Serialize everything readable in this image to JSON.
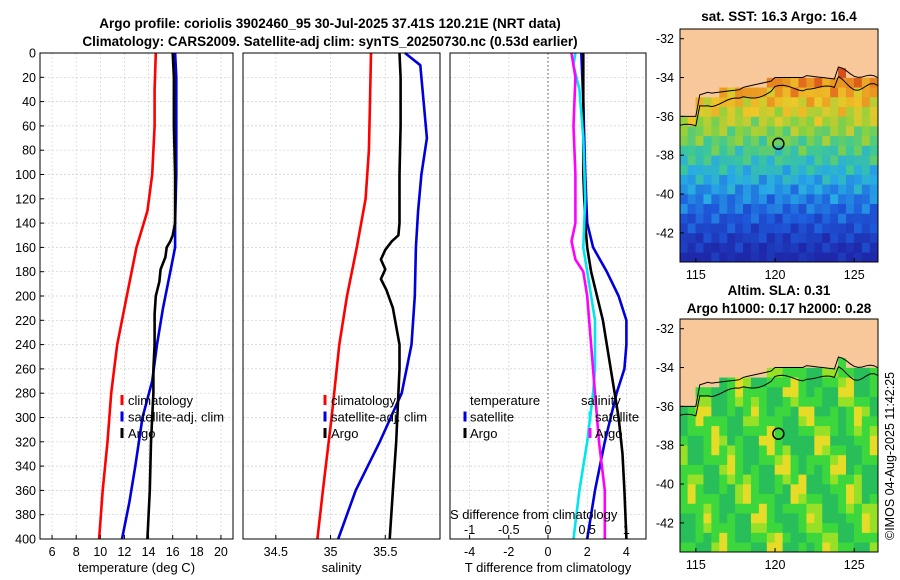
{
  "title_line1": "Argo profile: coriolis 3902460_95 30-Jul-2025 37.41S 120.21E (NRT data)",
  "title_line2": "Climatology: CARS2009. Satellite-adj clim: synTS_20250730.nc (0.53d earlier)",
  "watermark": "©IMOS 04-Aug-2025 11:42:25",
  "colors": {
    "climatology": "#ff0000",
    "satellite": "#0000dd",
    "argo": "#000000",
    "sdiff_clim": "#ff00ff",
    "sdiff_sat": "#00e5ee"
  },
  "chart_data": [
    {
      "type": "line",
      "name": "temperature",
      "xlabel": "temperature (deg C)",
      "ylabel": "",
      "xlim": [
        5,
        21
      ],
      "ylim": [
        400,
        0
      ],
      "xticks": [
        6,
        8,
        10,
        12,
        14,
        16,
        18,
        20
      ],
      "yticks": [
        0,
        20,
        40,
        60,
        80,
        100,
        120,
        140,
        160,
        180,
        200,
        220,
        240,
        260,
        280,
        300,
        320,
        340,
        360,
        380,
        400
      ],
      "legend": [
        "climatology",
        "satellite-adj. clim",
        "Argo"
      ],
      "series": [
        {
          "name": "climatology",
          "color": "#ff0000",
          "points": [
            [
              14.6,
              0
            ],
            [
              14.5,
              30
            ],
            [
              14.5,
              60
            ],
            [
              14.3,
              100
            ],
            [
              13.9,
              130
            ],
            [
              13.0,
              160
            ],
            [
              12.2,
              200
            ],
            [
              11.4,
              240
            ],
            [
              10.9,
              280
            ],
            [
              10.6,
              320
            ],
            [
              10.2,
              360
            ],
            [
              9.9,
              400
            ]
          ]
        },
        {
          "name": "satellite-adj. clim",
          "color": "#0000dd",
          "points": [
            [
              16.2,
              0
            ],
            [
              16.3,
              20
            ],
            [
              16.3,
              60
            ],
            [
              16.3,
              100
            ],
            [
              16.2,
              140
            ],
            [
              16.2,
              160
            ],
            [
              15.8,
              180
            ],
            [
              15.2,
              210
            ],
            [
              14.7,
              240
            ],
            [
              14.3,
              270
            ],
            [
              13.5,
              300
            ],
            [
              12.9,
              340
            ],
            [
              12.4,
              370
            ],
            [
              11.8,
              400
            ]
          ]
        },
        {
          "name": "Argo",
          "color": "#000000",
          "points": [
            [
              16.0,
              0
            ],
            [
              16.1,
              20
            ],
            [
              16.1,
              60
            ],
            [
              16.2,
              100
            ],
            [
              16.2,
              140
            ],
            [
              16.0,
              150
            ],
            [
              15.8,
              155
            ],
            [
              15.5,
              160
            ],
            [
              15.4,
              168
            ],
            [
              15.0,
              178
            ],
            [
              14.9,
              188
            ],
            [
              14.6,
              200
            ],
            [
              14.5,
              215
            ],
            [
              14.5,
              240
            ],
            [
              14.4,
              260
            ],
            [
              14.4,
              280
            ],
            [
              14.2,
              320
            ],
            [
              14.1,
              360
            ],
            [
              13.9,
              400
            ]
          ]
        }
      ]
    },
    {
      "type": "line",
      "name": "salinity",
      "xlabel": "salinity",
      "ylabel": "",
      "xlim": [
        34.2,
        36.0
      ],
      "ylim": [
        400,
        0
      ],
      "xticks": [
        34.5,
        35,
        35.5
      ],
      "legend": [
        "climatology",
        "satellite-adj. clim",
        "Argo"
      ],
      "series": [
        {
          "name": "climatology",
          "color": "#ff0000",
          "points": [
            [
              35.37,
              0
            ],
            [
              35.36,
              40
            ],
            [
              35.35,
              80
            ],
            [
              35.32,
              120
            ],
            [
              35.24,
              160
            ],
            [
              35.15,
              200
            ],
            [
              35.08,
              240
            ],
            [
              35.01,
              300
            ],
            [
              34.93,
              360
            ],
            [
              34.88,
              400
            ]
          ]
        },
        {
          "name": "satellite-adj. clim",
          "color": "#0000dd",
          "points": [
            [
              35.68,
              0
            ],
            [
              35.82,
              10
            ],
            [
              35.85,
              40
            ],
            [
              35.88,
              70
            ],
            [
              35.83,
              100
            ],
            [
              35.8,
              130
            ],
            [
              35.78,
              160
            ],
            [
              35.77,
              200
            ],
            [
              35.74,
              240
            ],
            [
              35.65,
              280
            ],
            [
              35.45,
              320
            ],
            [
              35.23,
              360
            ],
            [
              35.07,
              400
            ]
          ]
        },
        {
          "name": "Argo",
          "color": "#000000",
          "points": [
            [
              35.63,
              0
            ],
            [
              35.64,
              20
            ],
            [
              35.64,
              60
            ],
            [
              35.63,
              100
            ],
            [
              35.63,
              140
            ],
            [
              35.62,
              150
            ],
            [
              35.56,
              155
            ],
            [
              35.5,
              162
            ],
            [
              35.46,
              170
            ],
            [
              35.5,
              178
            ],
            [
              35.46,
              186
            ],
            [
              35.51,
              195
            ],
            [
              35.57,
              210
            ],
            [
              35.63,
              240
            ],
            [
              35.63,
              260
            ],
            [
              35.62,
              280
            ],
            [
              35.6,
              320
            ],
            [
              35.57,
              360
            ],
            [
              35.54,
              400
            ]
          ]
        }
      ]
    },
    {
      "type": "line",
      "name": "difference",
      "xlabel": "T difference from climatology",
      "top_xlabel": "S difference from climatology",
      "xlim": [
        -5,
        5
      ],
      "ylim": [
        400,
        0
      ],
      "xticks": [
        -4,
        -2,
        0,
        2,
        4
      ],
      "top_xticks": [
        "-1",
        "-0.5",
        "0",
        "0.5",
        "1"
      ],
      "legend_temperature_title": "temperature",
      "legend_salinity_title": "salinity",
      "legend": [
        "satellite",
        "Argo"
      ],
      "series": [
        {
          "name": "T satellite",
          "color": "#0000dd",
          "points": [
            [
              1.7,
              0
            ],
            [
              1.8,
              40
            ],
            [
              1.9,
              100
            ],
            [
              2.0,
              140
            ],
            [
              2.3,
              160
            ],
            [
              3.0,
              180
            ],
            [
              3.6,
              200
            ],
            [
              4.0,
              220
            ],
            [
              4.0,
              240
            ],
            [
              3.9,
              260
            ],
            [
              3.5,
              280
            ],
            [
              2.9,
              320
            ],
            [
              2.4,
              360
            ],
            [
              2.0,
              400
            ]
          ]
        },
        {
          "name": "T Argo",
          "color": "#000000",
          "points": [
            [
              1.8,
              0
            ],
            [
              1.8,
              40
            ],
            [
              1.8,
              100
            ],
            [
              1.9,
              140
            ],
            [
              2.0,
              160
            ],
            [
              2.2,
              180
            ],
            [
              2.5,
              200
            ],
            [
              2.8,
              220
            ],
            [
              3.0,
              240
            ],
            [
              3.3,
              270
            ],
            [
              3.6,
              300
            ],
            [
              3.8,
              330
            ],
            [
              3.9,
              360
            ],
            [
              4.0,
              400
            ]
          ]
        },
        {
          "name": "S satellite",
          "color": "#00e5ee",
          "points": [
            [
              1.4,
              0
            ],
            [
              1.3,
              10
            ],
            [
              1.6,
              30
            ],
            [
              1.8,
              70
            ],
            [
              1.9,
              120
            ],
            [
              1.8,
              160
            ],
            [
              2.1,
              190
            ],
            [
              2.4,
              220
            ],
            [
              2.4,
              260
            ],
            [
              2.3,
              280
            ],
            [
              2.0,
              320
            ],
            [
              1.6,
              360
            ],
            [
              1.3,
              400
            ]
          ]
        },
        {
          "name": "S Argo",
          "color": "#ff00ff",
          "points": [
            [
              1.2,
              0
            ],
            [
              1.4,
              20
            ],
            [
              1.3,
              60
            ],
            [
              1.4,
              100
            ],
            [
              1.4,
              140
            ],
            [
              1.2,
              155
            ],
            [
              1.4,
              170
            ],
            [
              1.8,
              180
            ],
            [
              2.0,
              200
            ],
            [
              2.2,
              240
            ],
            [
              2.4,
              280
            ],
            [
              2.6,
              320
            ],
            [
              2.9,
              360
            ],
            [
              2.9,
              400
            ]
          ]
        }
      ]
    },
    {
      "type": "heatmap",
      "name": "sst_map",
      "title": "sat. SST: 16.3 Argo: 16.4",
      "xlim": [
        114,
        126.5
      ],
      "ylim": [
        -43.5,
        -31.5
      ],
      "xticks": [
        115,
        120,
        125
      ],
      "yticks": [
        -32,
        -34,
        -36,
        -38,
        -40,
        -42
      ],
      "marker": [
        120.21,
        -37.41
      ]
    },
    {
      "type": "heatmap",
      "name": "sla_map",
      "title_line1": "Altim. SLA: 0.31",
      "title_line2": "Argo h1000: 0.17 h2000: 0.28",
      "xlim": [
        114,
        126.5
      ],
      "ylim": [
        -43.5,
        -31.5
      ],
      "xticks": [
        115,
        120,
        125
      ],
      "yticks": [
        -32,
        -34,
        -36,
        -38,
        -40,
        -42
      ],
      "marker": [
        120.21,
        -37.41
      ]
    }
  ]
}
